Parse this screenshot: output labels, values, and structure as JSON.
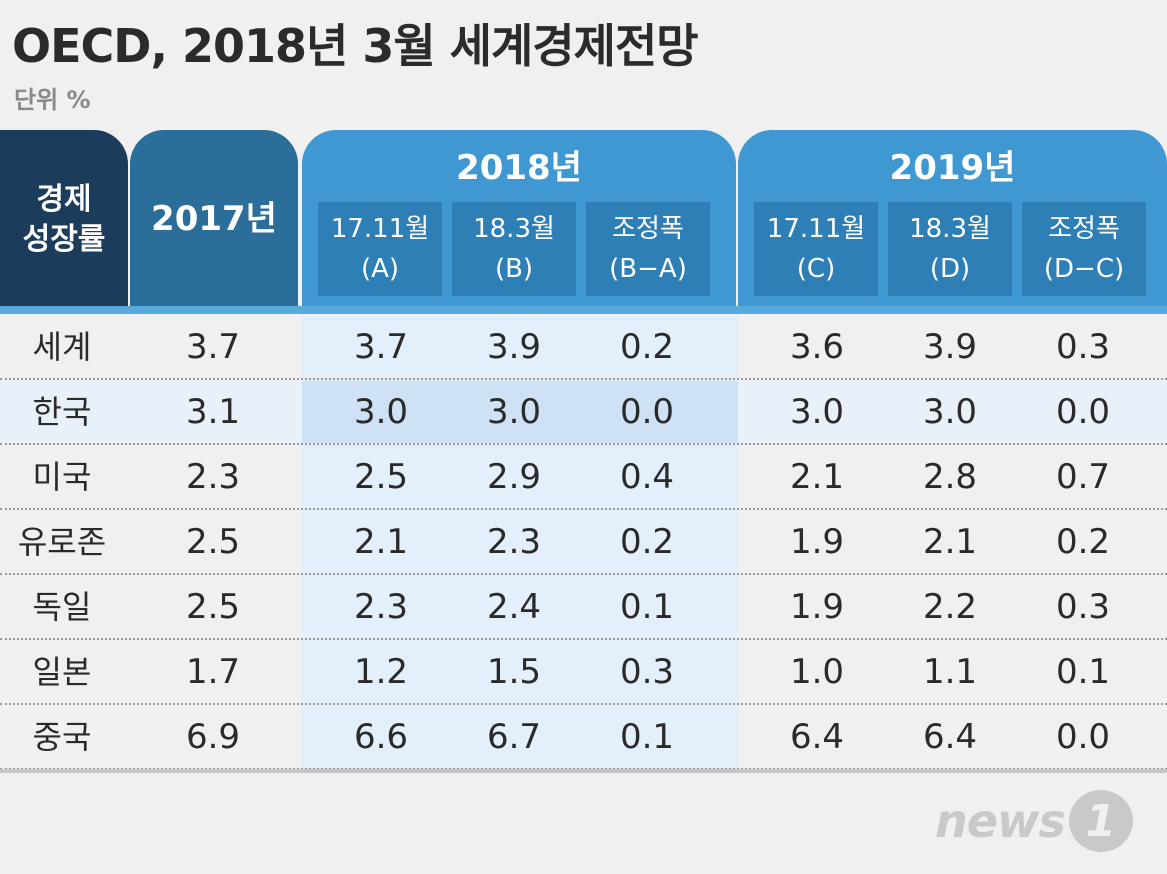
{
  "title": "OECD, 2018년 3월 세계경제전망",
  "unit": "단위 %",
  "chart_data": {
    "type": "table",
    "title": "OECD, 2018년 3월 세계경제전망",
    "unit": "단위 %",
    "header": {
      "row_label_line1": "경제",
      "row_label_line2": "성장률",
      "col_2017": "2017년",
      "year_2018": "2018년",
      "year_2019": "2019년",
      "sub_2018": [
        {
          "line1": "17.11월",
          "line2": "(A)"
        },
        {
          "line1": "18.3월",
          "line2": "(B)"
        },
        {
          "line1": "조정폭",
          "line2": "(B−A)"
        }
      ],
      "sub_2019": [
        {
          "line1": "17.11월",
          "line2": "(C)"
        },
        {
          "line1": "18.3월",
          "line2": "(D)"
        },
        {
          "line1": "조정폭",
          "line2": "(D−C)"
        }
      ]
    },
    "rows": [
      {
        "region": "세계",
        "v2017": "3.7",
        "a": "3.7",
        "b": "3.9",
        "ba": "0.2",
        "c": "3.6",
        "d": "3.9",
        "dc": "0.3"
      },
      {
        "region": "한국",
        "v2017": "3.1",
        "a": "3.0",
        "b": "3.0",
        "ba": "0.0",
        "c": "3.0",
        "d": "3.0",
        "dc": "0.0"
      },
      {
        "region": "미국",
        "v2017": "2.3",
        "a": "2.5",
        "b": "2.9",
        "ba": "0.4",
        "c": "2.1",
        "d": "2.8",
        "dc": "0.7"
      },
      {
        "region": "유로존",
        "v2017": "2.5",
        "a": "2.1",
        "b": "2.3",
        "ba": "0.2",
        "c": "1.9",
        "d": "2.1",
        "dc": "0.2"
      },
      {
        "region": "독일",
        "v2017": "2.5",
        "a": "2.3",
        "b": "2.4",
        "ba": "0.1",
        "c": "1.9",
        "d": "2.2",
        "dc": "0.3"
      },
      {
        "region": "일본",
        "v2017": "1.7",
        "a": "1.2",
        "b": "1.5",
        "ba": "0.3",
        "c": "1.0",
        "d": "1.1",
        "dc": "0.1"
      },
      {
        "region": "중국",
        "v2017": "6.9",
        "a": "6.6",
        "b": "6.7",
        "ba": "0.1",
        "c": "6.4",
        "d": "6.4",
        "dc": "0.0"
      }
    ],
    "highlight_region": "한국"
  },
  "logo": {
    "text": "news",
    "badge": "1"
  },
  "colors": {
    "dark_navy": "#1c3c5c",
    "mid_blue": "#2c6e9a",
    "bright_blue": "#3f98d2",
    "sub_blue": "#2f7fb7",
    "shade": "#e3effb"
  }
}
